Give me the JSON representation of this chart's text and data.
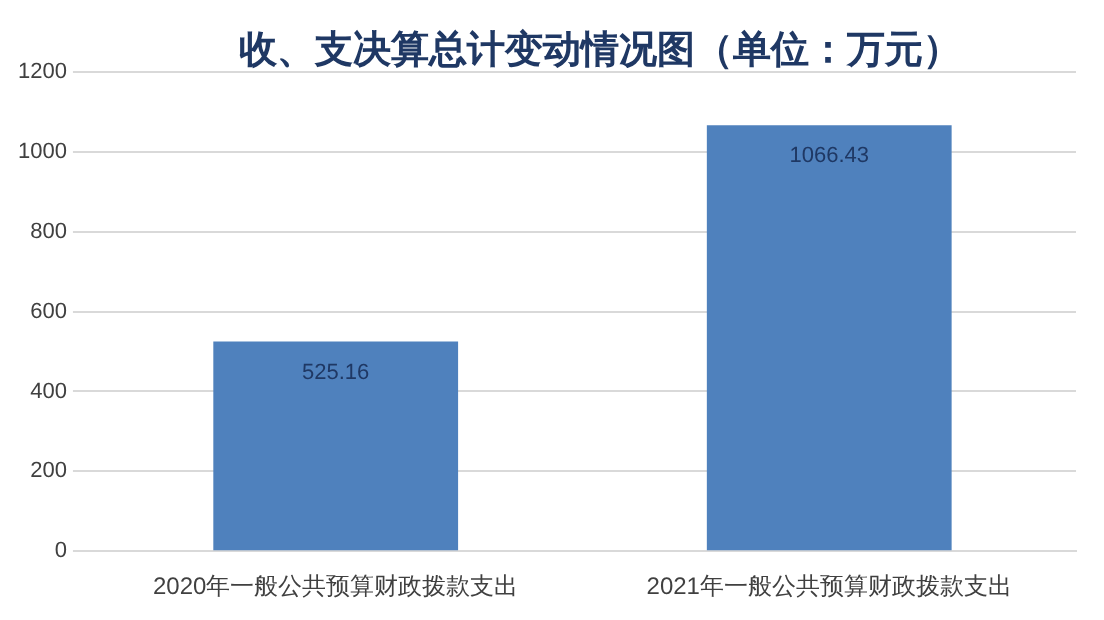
{
  "chart_data": {
    "type": "bar",
    "title": "收、支决算总计变动情况图（单位：万元）",
    "categories": [
      "2020年一般公共预算财政拨款支出",
      "2021年一般公共预算财政拨款支出"
    ],
    "values": [
      525.16,
      1066.43
    ],
    "color": "#4f81bd",
    "ylim": [
      0,
      1200
    ],
    "yticks": [
      0,
      200,
      400,
      600,
      800,
      1000,
      1200
    ],
    "grid": "y",
    "data_labels": true
  }
}
